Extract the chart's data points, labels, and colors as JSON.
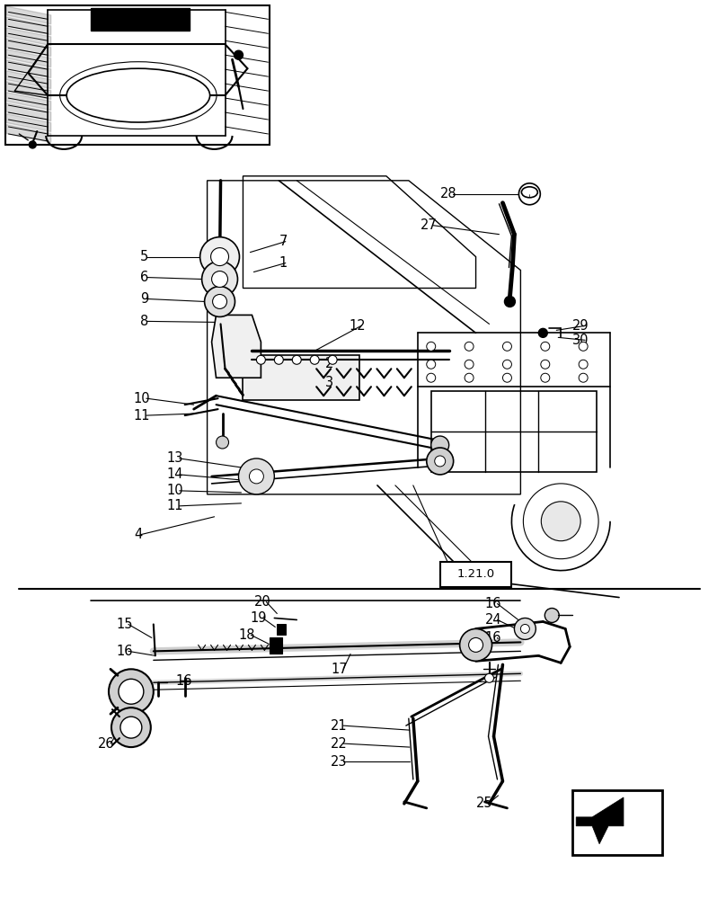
{
  "bg_color": "#ffffff",
  "fig_width": 8.08,
  "fig_height": 10.0,
  "dpi": 100,
  "label_fontsize": 10.5
}
